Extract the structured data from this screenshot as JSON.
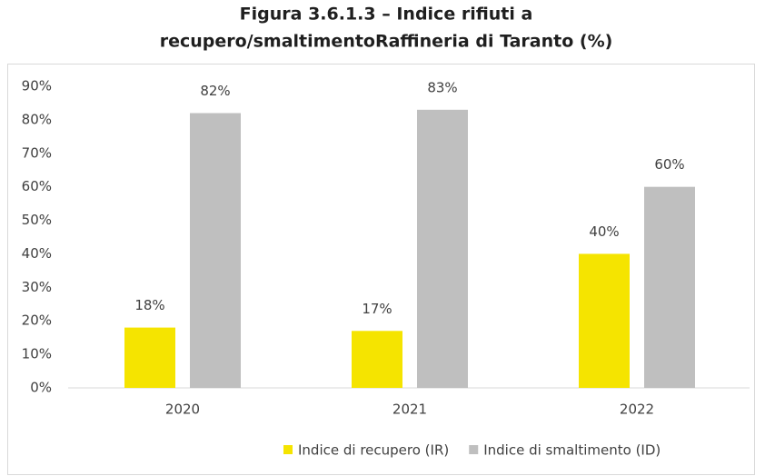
{
  "chart_data": {
    "type": "bar",
    "title": [
      "Figura 3.6.1.3 – Indice rifiuti a",
      "recupero/smaltimentoRaffineria di Taranto (%)"
    ],
    "categories": [
      "2020",
      "2021",
      "2022"
    ],
    "series": [
      {
        "name": "Indice di recupero (IR)",
        "color": "#f5e400",
        "values": [
          18,
          17,
          40
        ],
        "value_labels": [
          "18%",
          "17%",
          "40%"
        ]
      },
      {
        "name": "Indice di smaltimento (ID)",
        "color": "#bfbfbf",
        "values": [
          82,
          83,
          60
        ],
        "value_labels": [
          "82%",
          "83%",
          "60%"
        ]
      }
    ],
    "ylim": [
      0,
      90
    ],
    "yticks": [
      {
        "value": 0,
        "label": "0%"
      },
      {
        "value": 10,
        "label": "10%"
      },
      {
        "value": 20,
        "label": "20%"
      },
      {
        "value": 30,
        "label": "30%"
      },
      {
        "value": 40,
        "label": "40%"
      },
      {
        "value": 50,
        "label": "50%"
      },
      {
        "value": 60,
        "label": "60%"
      },
      {
        "value": 70,
        "label": "70%"
      },
      {
        "value": 80,
        "label": "80%"
      },
      {
        "value": 90,
        "label": "90%"
      }
    ],
    "grid": false,
    "legend": "bottom"
  }
}
